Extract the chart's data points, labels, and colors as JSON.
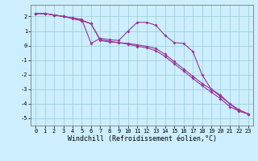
{
  "xlabel": "Windchill (Refroidissement éolien,°C)",
  "background_color": "#cceeff",
  "line_color": "#993399",
  "xlim": [
    -0.5,
    23.5
  ],
  "ylim": [
    -5.5,
    2.8
  ],
  "yticks": [
    -5,
    -4,
    -3,
    -2,
    -1,
    0,
    1,
    2
  ],
  "xticks": [
    0,
    1,
    2,
    3,
    4,
    5,
    6,
    7,
    8,
    9,
    10,
    11,
    12,
    13,
    14,
    15,
    16,
    17,
    18,
    19,
    20,
    21,
    22,
    23
  ],
  "grid_color": "#99cccc",
  "line1_x": [
    0,
    1,
    2,
    3,
    4,
    5,
    6,
    7,
    8,
    9,
    10,
    11,
    12,
    13,
    14,
    15,
    16,
    17,
    18,
    19,
    20,
    21,
    22,
    23
  ],
  "line1_y": [
    2.2,
    2.2,
    2.1,
    2.0,
    1.9,
    1.8,
    0.15,
    0.5,
    0.4,
    0.35,
    1.0,
    1.6,
    1.6,
    1.4,
    0.7,
    0.2,
    0.15,
    -0.4,
    -2.0,
    -3.0,
    -3.5,
    -4.0,
    -4.5,
    -4.7
  ],
  "line2_x": [
    0,
    1,
    2,
    3,
    4,
    5,
    6,
    7,
    8,
    9,
    10,
    11,
    12,
    13,
    14,
    15,
    16,
    17,
    18,
    19,
    20,
    21,
    22,
    23
  ],
  "line2_y": [
    2.2,
    2.2,
    2.1,
    2.0,
    1.85,
    1.7,
    1.5,
    0.35,
    0.25,
    0.2,
    0.15,
    0.05,
    -0.05,
    -0.2,
    -0.6,
    -1.1,
    -1.6,
    -2.1,
    -2.6,
    -3.0,
    -3.4,
    -4.0,
    -4.4,
    -4.7
  ],
  "line3_x": [
    0,
    1,
    2,
    3,
    4,
    5,
    6,
    7,
    8,
    9,
    10,
    11,
    12,
    13,
    14,
    15,
    16,
    17,
    18,
    19,
    20,
    21,
    22,
    23
  ],
  "line3_y": [
    2.2,
    2.2,
    2.1,
    2.0,
    1.9,
    1.75,
    1.5,
    0.4,
    0.3,
    0.2,
    0.1,
    -0.05,
    -0.15,
    -0.35,
    -0.75,
    -1.25,
    -1.75,
    -2.25,
    -2.75,
    -3.2,
    -3.65,
    -4.2,
    -4.5,
    -4.7
  ],
  "marker": "D",
  "markersize": 2,
  "linewidth": 0.8,
  "tick_fontsize": 5,
  "xlabel_fontsize": 6
}
